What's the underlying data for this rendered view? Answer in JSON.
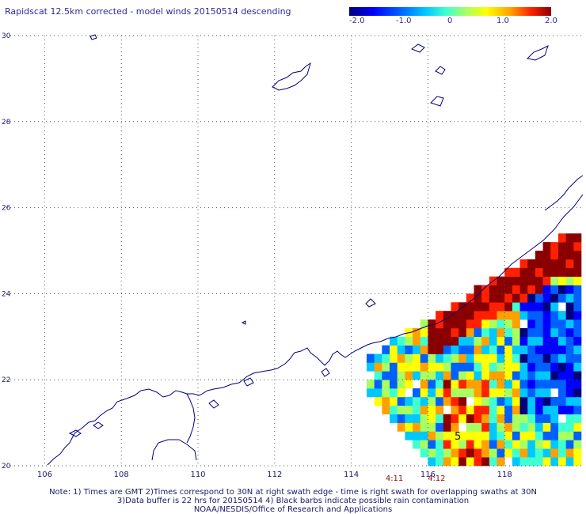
{
  "title": "Rapidscat 12.5km corrected - model winds 20150514 descending",
  "colorbar": {
    "labels": [
      "-2.0",
      "-1.0",
      "0",
      "1.0",
      "2.0"
    ],
    "range": [
      -2.0,
      2.0
    ],
    "colors": [
      "#00007a",
      "#0000ff",
      "#0060ff",
      "#00c8ff",
      "#40ffd0",
      "#a8ff60",
      "#ffff00",
      "#ffa000",
      "#ff2000",
      "#8a0000"
    ]
  },
  "map": {
    "lon_range": [
      105,
      120
    ],
    "lat_range": [
      20,
      30
    ],
    "lon_ticks": [
      "106",
      "108",
      "110",
      "112",
      "114",
      "116",
      "118"
    ],
    "lat_ticks": [
      "20",
      "22",
      "24",
      "26",
      "28",
      "30"
    ],
    "coastline_color": "#000080",
    "grid_color": "#555555"
  },
  "time_labels": [
    {
      "text": "4:11",
      "lon": 115.1
    },
    {
      "text": "4:12",
      "lon": 116.2
    }
  ],
  "storm_marker": "5",
  "notes": [
    "Note: 1) Times are GMT 2)Times correspond to 30N at right swath edge - time is right swath for overlapping swaths at 30N",
    "3)Data buffer is 22 hrs for 20150514 4) Black barbs indicate possible rain contamination",
    "NOAA/NESDIS/Office of Research and Applications"
  ]
}
